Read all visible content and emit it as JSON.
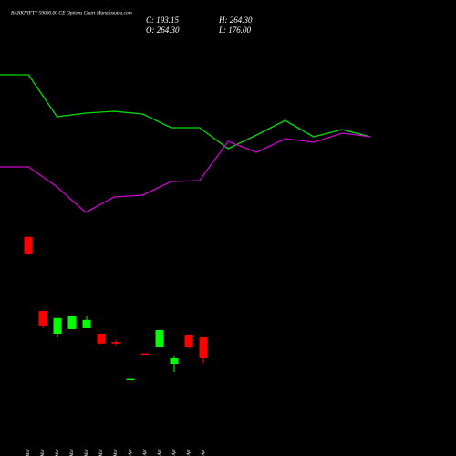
{
  "chart_data": {
    "type": "candlestick",
    "title": "BANKNIFTY 59000.00 CE Options Chart Munafasutra.com",
    "summary": [
      "C: 193.15",
      "H: 264.30",
      "O: 264.30",
      "L: 176.00"
    ],
    "categories": [
      "11 Mar",
      "13 Mar",
      "16 Mar",
      "17 Mar",
      "18 Mar",
      "19 Mar",
      "20 Mar",
      "07 Apr",
      "08 Apr",
      "09 Apr",
      "10 Apr",
      "13 Apr",
      "16 Apr"
    ],
    "open": [
      588,
      347,
      273,
      288,
      291,
      273,
      246,
      124,
      209,
      229,
      175,
      270,
      264.3
    ],
    "high": [
      588,
      347,
      324,
      330,
      330,
      273,
      252,
      126,
      209,
      285,
      202,
      270,
      264.3
    ],
    "low": [
      534,
      291,
      261,
      288,
      291,
      238,
      235,
      124,
      207,
      228,
      148,
      225,
      176
    ],
    "close": [
      534,
      300,
      324,
      330,
      318,
      241,
      241,
      126,
      207,
      285,
      196,
      229,
      193.15
    ],
    "up_color": "#00ff00",
    "down_color": "#ff0000",
    "ylim": [
      24,
      1358
    ],
    "x": [
      0,
      1,
      2,
      3,
      4,
      5,
      6,
      7,
      8,
      9,
      10,
      11,
      12,
      13
    ],
    "xlim": [
      0,
      16
    ],
    "y2lim": [
      0,
      100
    ],
    "series": [
      {
        "color": "#00dd00",
        "axis": "y2",
        "values": [
          67.2,
          67.2,
          48.8,
          50.4,
          51.2,
          50,
          44,
          44,
          34.8,
          40.8,
          47.2,
          40,
          43.2,
          40
        ]
      },
      {
        "color": "#cc00cc",
        "axis": "y2",
        "values": [
          26.8,
          26.8,
          18,
          6.8,
          13.6,
          14.4,
          20.4,
          20.8,
          38,
          33.2,
          39.2,
          37.6,
          41.6,
          40
        ]
      }
    ]
  }
}
